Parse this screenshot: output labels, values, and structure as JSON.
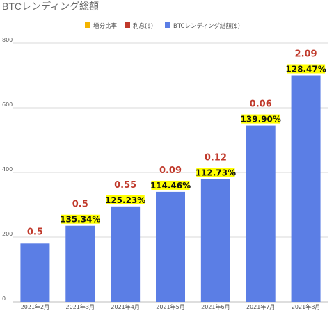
{
  "chart_data": {
    "type": "bar",
    "title": "BTCレンディング総額",
    "legend": {
      "placement": "top-center",
      "entries": [
        {
          "label": "増分比率",
          "color": "#f4b400"
        },
        {
          "label": "利息($)",
          "color": "#c0392b"
        },
        {
          "label": "BTCレンディング総額($)",
          "color": "#5b7ee5"
        }
      ]
    },
    "categories": [
      "2021年2月",
      "2021年3月",
      "2021年4月",
      "2021年5月",
      "2021年6月",
      "2021年7月",
      "2021年8月"
    ],
    "series": [
      {
        "name": "BTCレンディング総額($)",
        "values": [
          180,
          235,
          295,
          340,
          380,
          545,
          700
        ]
      },
      {
        "name": "利息($)",
        "values": [
          0.5,
          0.5,
          0.55,
          0.09,
          0.12,
          0.06,
          2.09
        ],
        "labels": [
          "0.5",
          "0.5",
          "0.55",
          "0.09",
          "0.12",
          "0.06",
          "2.09"
        ]
      },
      {
        "name": "増分比率",
        "values": [
          null,
          135.34,
          125.23,
          114.46,
          112.73,
          139.9,
          128.47
        ],
        "labels": [
          "",
          "135.34%",
          "125.23%",
          "114.46%",
          "112.73%",
          "139.90%",
          "128.47%"
        ]
      }
    ],
    "yticks": [
      "0",
      "200",
      "400",
      "600",
      "800"
    ],
    "ylim": [
      0,
      800
    ],
    "grid": true,
    "colors": {
      "bar": "#5b7ee5",
      "interest": "#c0392b",
      "ratio_highlight": "#ffff00",
      "ratio_text": "#111111",
      "grid": "#d9d9d9",
      "title": "#666666",
      "axis_text": "#555555"
    }
  }
}
